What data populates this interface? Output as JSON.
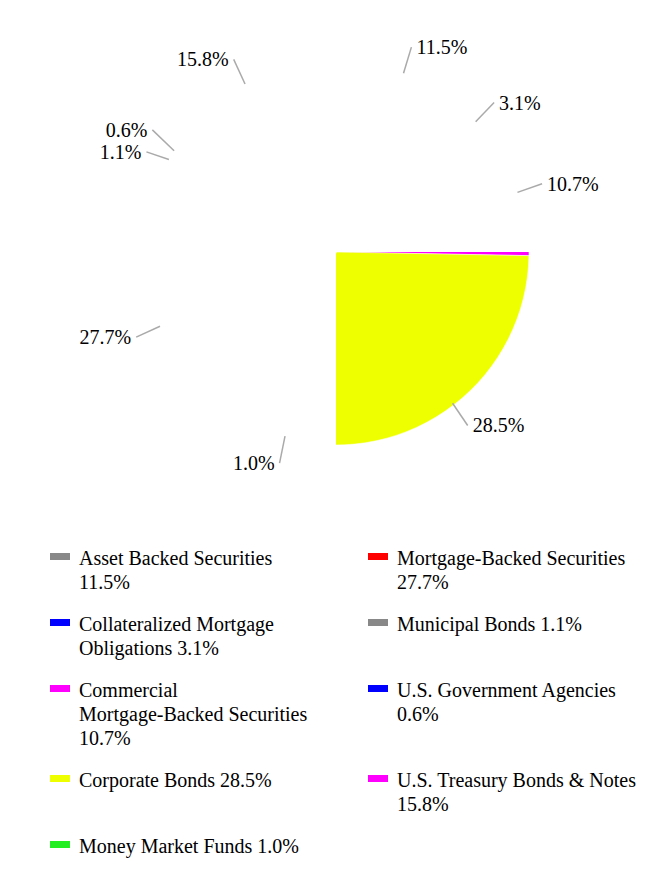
{
  "chart_data": {
    "type": "pie",
    "categories": [
      "Asset Backed Securities",
      "Collateralized Mortgage Obligations",
      "Commercial Mortgage-Backed Securities",
      "Corporate Bonds",
      "Money Market Funds",
      "Mortgage-Backed Securities",
      "Municipal Bonds",
      "U.S. Government Agencies",
      "U.S. Treasury Bonds & Notes"
    ],
    "values": [
      11.5,
      3.1,
      10.7,
      28.5,
      1.0,
      27.7,
      1.1,
      0.6,
      15.8
    ],
    "value_labels": [
      "11.5%",
      "3.1%",
      "10.7%",
      "28.5%",
      "1.0%",
      "27.7%",
      "1.1%",
      "0.6%",
      "15.8%"
    ],
    "colors": [
      "#888888",
      "#0000ff",
      "#ff00ff",
      "#eeff00",
      "#22ee22",
      "#ff0000",
      "#888888",
      "#0000ff",
      "#ff00ff"
    ],
    "data_labels": true,
    "legend": "bottom"
  }
}
